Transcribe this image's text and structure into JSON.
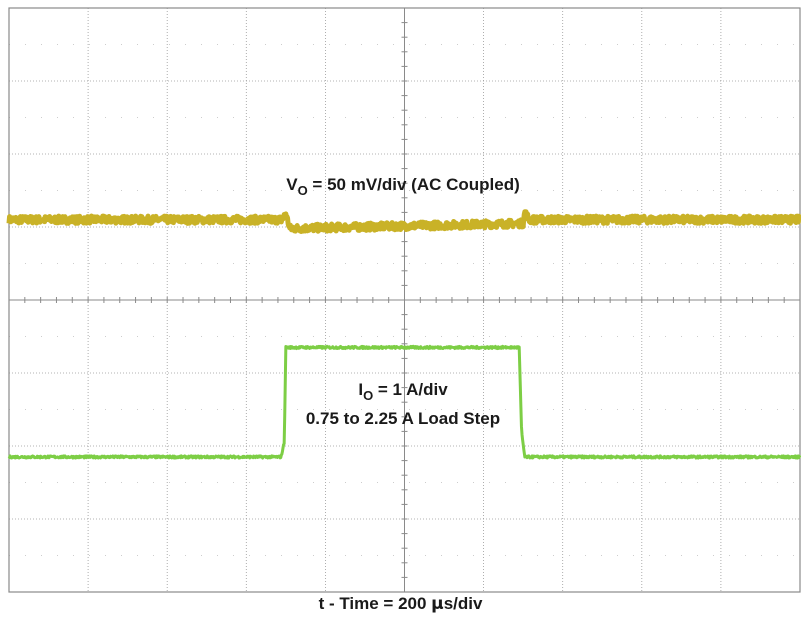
{
  "chart_data": {
    "type": "line",
    "title": "",
    "grid": true,
    "divisions": {
      "x": 10,
      "y": 8
    },
    "xlabel": {
      "prefix": "t - Time = 200 ",
      "unit_mu": "μ",
      "suffix": "s/div",
      "full": "t - Time = 200 μs/div"
    },
    "time_per_div_us": 200,
    "x_range_div": [
      0,
      10
    ],
    "y_range_div": [
      0,
      8
    ],
    "series": [
      {
        "name": "VO",
        "annotation": {
          "main": "V",
          "sub": "O",
          "rest": " = 50 mV/div (AC Coupled)"
        },
        "scale": "50 mV/div",
        "coupling": "AC",
        "color": "#c9b227",
        "x_div": [
          0,
          3.45,
          3.5,
          3.55,
          6.5,
          6.52,
          6.58,
          10
        ],
        "y_div": [
          5.1,
          5.1,
          5.18,
          4.98,
          5.05,
          5.2,
          5.1,
          5.1
        ],
        "noise_div": 0.1
      },
      {
        "name": "IO",
        "annotation": {
          "main": "I",
          "sub": "O",
          "rest": " = 1 A/div"
        },
        "annotation2": "0.75 to 2.25 A Load Step",
        "scale": "1 A/div",
        "load_step_A": [
          0.75,
          2.25
        ],
        "color": "#7dce45",
        "x_div": [
          0,
          3.44,
          3.48,
          3.5,
          6.45,
          6.48,
          6.52,
          10
        ],
        "y_div": [
          1.85,
          1.85,
          2.05,
          3.35,
          3.35,
          2.2,
          1.85,
          1.85
        ],
        "noise_div": 0.03
      }
    ]
  }
}
